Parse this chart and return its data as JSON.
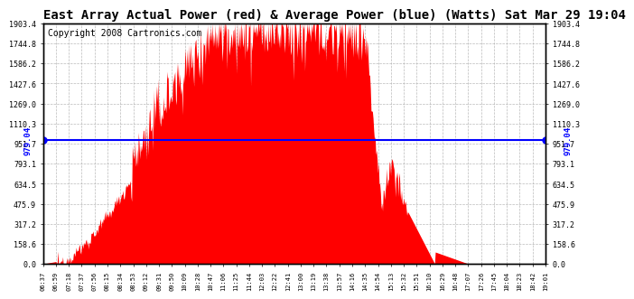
{
  "title": "East Array Actual Power (red) & Average Power (blue) (Watts) Sat Mar 29 19:04",
  "copyright": "Copyright 2008 Cartronics.com",
  "avg_value": 979.04,
  "y_max": 1903.4,
  "y_ticks": [
    0.0,
    158.6,
    317.2,
    475.9,
    634.5,
    793.1,
    951.7,
    1110.3,
    1269.0,
    1427.6,
    1586.2,
    1744.8,
    1903.4
  ],
  "y_tick_labels": [
    "0.0",
    "158.6",
    "317.2",
    "475.9",
    "634.5",
    "793.1",
    "951.7",
    "1110.3",
    "1269.0",
    "1427.6",
    "1586.2",
    "1744.8",
    "1903.4"
  ],
  "fill_color": "#FF0000",
  "avg_line_color": "#0000FF",
  "background_color": "#FFFFFF",
  "grid_color": "#AAAAAA",
  "text_color": "#000000",
  "title_fontsize": 10,
  "copyright_fontsize": 7,
  "x_tick_labels": [
    "06:37",
    "06:59",
    "07:18",
    "07:37",
    "07:56",
    "08:15",
    "08:34",
    "08:53",
    "09:12",
    "09:31",
    "09:50",
    "10:09",
    "10:28",
    "10:47",
    "11:06",
    "11:25",
    "11:44",
    "12:03",
    "12:22",
    "12:41",
    "13:00",
    "13:19",
    "13:38",
    "13:57",
    "14:16",
    "14:35",
    "14:54",
    "15:13",
    "15:32",
    "15:51",
    "16:10",
    "16:29",
    "16:48",
    "17:07",
    "17:26",
    "17:45",
    "18:04",
    "18:23",
    "18:42",
    "19:01"
  ]
}
